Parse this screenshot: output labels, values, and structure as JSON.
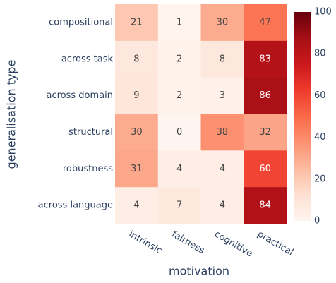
{
  "chart_data": {
    "type": "heatmap",
    "xlabel": "motivation",
    "ylabel": "generalisation type",
    "categories": [
      "intrinsic",
      "fairness",
      "cognitive",
      "practical"
    ],
    "rows": [
      "compositional",
      "across task",
      "across domain",
      "structural",
      "robustness",
      "across language"
    ],
    "values": [
      [
        21,
        1,
        30,
        47
      ],
      [
        8,
        2,
        8,
        83
      ],
      [
        9,
        2,
        3,
        86
      ],
      [
        30,
        0,
        38,
        32
      ],
      [
        31,
        4,
        4,
        60
      ],
      [
        4,
        7,
        4,
        84
      ]
    ],
    "zlim": [
      0,
      100
    ],
    "zticks": [
      0,
      20,
      40,
      60,
      80,
      100
    ],
    "colorscale": [
      [
        0,
        "#fff5f0"
      ],
      [
        0.125,
        "#fee0d2"
      ],
      [
        0.25,
        "#fcbba1"
      ],
      [
        0.375,
        "#fc9272"
      ],
      [
        0.5,
        "#fb6a4a"
      ],
      [
        0.625,
        "#ef3b2c"
      ],
      [
        0.75,
        "#cb181d"
      ],
      [
        0.875,
        "#a50f15"
      ],
      [
        1,
        "#67000d"
      ]
    ]
  }
}
